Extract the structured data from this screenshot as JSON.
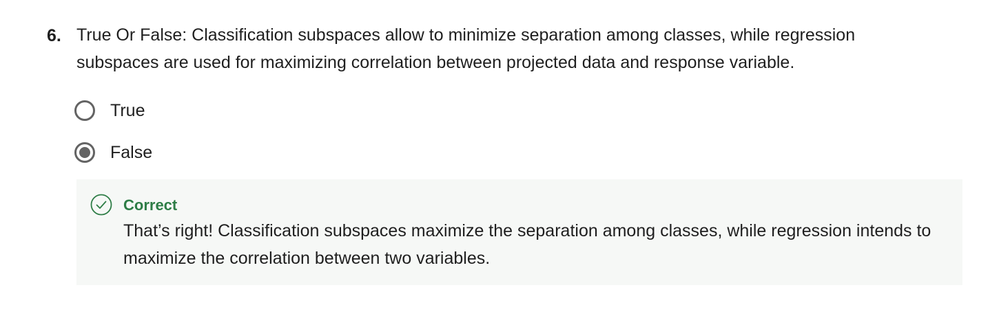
{
  "question": {
    "number": "6.",
    "text": "True Or False: Classification subspaces allow to minimize separation among classes, while regression subspaces are used for maximizing correlation between projected data and response variable.",
    "options": [
      {
        "label": "True",
        "selected": false
      },
      {
        "label": "False",
        "selected": true
      }
    ]
  },
  "feedback": {
    "status": "Correct",
    "icon": "check-circle-icon",
    "message": "That’s right! Classification subspaces maximize the separation among classes, while regression intends to maximize the correlation between two variables.",
    "accent_color": "#2e7d46",
    "background_color": "#f6f8f6"
  }
}
